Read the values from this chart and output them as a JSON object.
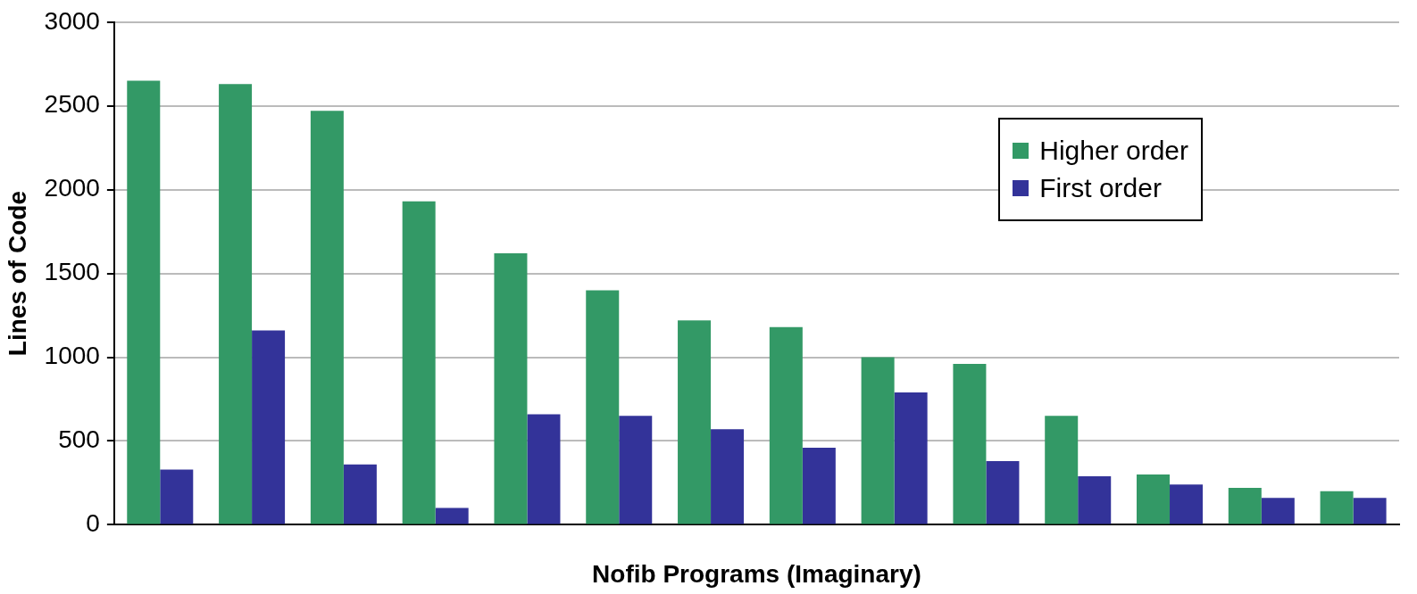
{
  "chart_data": {
    "type": "bar",
    "xlabel": "Nofib Programs (Imaginary)",
    "ylabel": "Lines of Code",
    "categories": [
      null,
      null,
      null,
      null,
      null,
      null,
      null,
      null,
      null,
      null,
      null,
      null,
      null,
      null
    ],
    "series": [
      {
        "name": "Higher order",
        "color": "#339966",
        "values": [
          2650,
          2630,
          2470,
          1930,
          1620,
          1400,
          1220,
          1180,
          1000,
          960,
          650,
          300,
          220,
          200
        ]
      },
      {
        "name": "First order",
        "color": "#333399",
        "values": [
          330,
          1160,
          360,
          100,
          660,
          650,
          570,
          460,
          790,
          380,
          290,
          240,
          160,
          160
        ]
      }
    ],
    "ylim": [
      0,
      3000
    ],
    "yticks": [
      0,
      500,
      1000,
      1500,
      2000,
      2500,
      3000
    ],
    "grid": "y",
    "legend": "top right",
    "tick_labels": "y"
  }
}
